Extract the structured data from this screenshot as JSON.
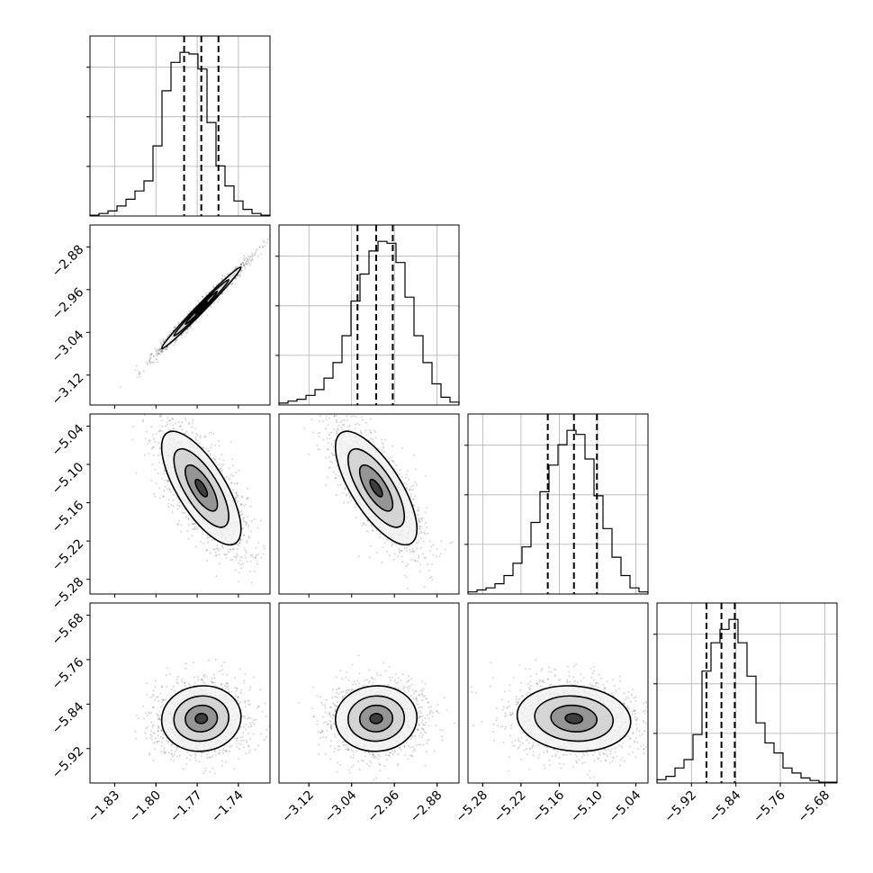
{
  "chart_data": {
    "type": "corner",
    "grid": true,
    "parameters": [
      {
        "range": [
          -1.848,
          -1.717
        ],
        "ticks": [
          "−1.83",
          "−1.80",
          "−1.77",
          "−1.74"
        ],
        "tick_values": [
          -1.83,
          -1.8,
          -1.77,
          -1.74
        ],
        "quantiles": [
          -1.7795,
          -1.767,
          -1.7545
        ]
      },
      {
        "range": [
          -3.176,
          -2.839
        ],
        "ticks": [
          "−3.12",
          "−3.04",
          "−2.96",
          "−2.88"
        ],
        "tick_values": [
          -3.12,
          -3.04,
          -2.96,
          -2.88
        ],
        "quantiles": [
          -3.029,
          -2.994,
          -2.963
        ]
      },
      {
        "range": [
          -5.303,
          -5.021
        ],
        "ticks": [
          "−5.28",
          "−5.22",
          "−5.16",
          "−5.10",
          "−5.04"
        ],
        "tick_values": [
          -5.28,
          -5.22,
          -5.16,
          -5.1,
          -5.04
        ],
        "quantiles": [
          -5.178,
          -5.137,
          -5.101
        ]
      },
      {
        "range": [
          -5.982,
          -5.658
        ],
        "ticks": [
          "−5.92",
          "−5.84",
          "−5.76",
          "−5.68"
        ],
        "tick_values": [
          -5.92,
          -5.84,
          -5.76,
          -5.68
        ],
        "quantiles": [
          -5.893,
          -5.866,
          -5.842
        ]
      }
    ],
    "histograms": [
      [
        0.5,
        1.5,
        3,
        6,
        10,
        15,
        21,
        42,
        75,
        92,
        98,
        97,
        88,
        56,
        30,
        18,
        9,
        4,
        1.5,
        0.5
      ],
      [
        1,
        2,
        3,
        5,
        8,
        14,
        22,
        36,
        54,
        68,
        80,
        85,
        84,
        74,
        56,
        36,
        22,
        11,
        4,
        1.5
      ],
      [
        1,
        2,
        3,
        5,
        9,
        15,
        23,
        35,
        50,
        63,
        73,
        80,
        78,
        66,
        48,
        32,
        18,
        9,
        3,
        1
      ],
      [
        2,
        4,
        9,
        14,
        29,
        67,
        84,
        92,
        98,
        84,
        64,
        36,
        24,
        18,
        9,
        6,
        3,
        1.5,
        0.5,
        0.5
      ]
    ],
    "pairs": [
      {
        "x": 0,
        "y": 1,
        "corr": 0.99
      },
      {
        "x": 0,
        "y": 2,
        "corr": -0.72
      },
      {
        "x": 1,
        "y": 2,
        "corr": -0.72
      },
      {
        "x": 0,
        "y": 3,
        "corr": 0.05
      },
      {
        "x": 1,
        "y": 3,
        "corr": 0.03
      },
      {
        "x": 2,
        "y": 3,
        "corr": -0.1
      }
    ]
  }
}
